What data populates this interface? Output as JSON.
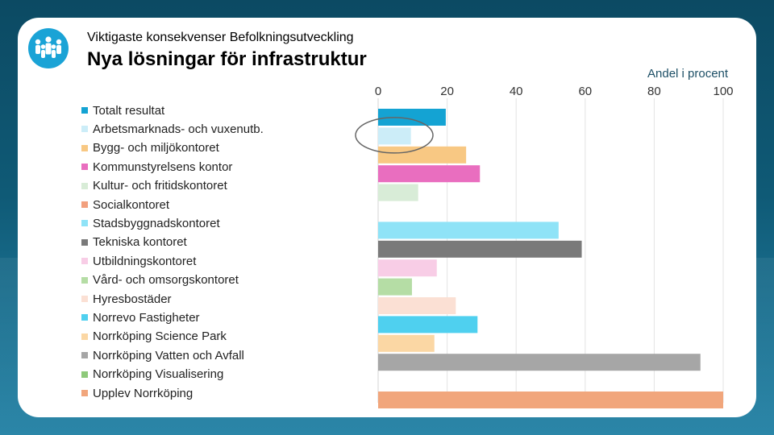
{
  "header": {
    "subtitle": "Viktigaste konsekvenser Befolkningsutveckling",
    "title": "Nya lösningar för infrastruktur",
    "logo_icon": "people-group-icon"
  },
  "chart_data": {
    "type": "bar",
    "orientation": "horizontal",
    "title": "Nya lösningar för infrastruktur",
    "xlabel": "Andel i procent",
    "ylabel": "",
    "xlim": [
      0,
      100
    ],
    "x_ticks": [
      "0",
      "20",
      "40",
      "60",
      "80",
      "100"
    ],
    "grid": true,
    "legend_position": "left",
    "categories": [
      "Totalt resultat",
      "Arbetsmarknads- och vuxenutb.",
      "Bygg- och miljökontoret",
      "Kommunstyrelsens kontor",
      "Kultur- och fritidskontoret",
      "Socialkontoret",
      "Stadsbyggnadskontoret",
      "Tekniska kontoret",
      "Utbildningskontoret",
      "Vård- och omsorgskontoret",
      "Hyresbostäder",
      "Norrevo Fastigheter",
      "Norrköping Science Park",
      "Norrköping Vatten och Avfall",
      "Norrköping Visualisering",
      "Upplev Norrköping"
    ],
    "values": [
      19.6,
      9.5,
      25.5,
      29.5,
      11.6,
      0,
      52.3,
      59.0,
      17.0,
      9.8,
      22.5,
      28.8,
      16.3,
      93.4,
      0,
      100
    ],
    "colors": [
      "#14a3d3",
      "#ccedf8",
      "#f8c883",
      "#e96ebf",
      "#d8ecd7",
      "#f2a07e",
      "#8fe3f7",
      "#7a7a7a",
      "#f8cde6",
      "#b5dda5",
      "#fbe0d4",
      "#4fd0ef",
      "#fbd7a4",
      "#a6a6a6",
      "#8ec97a",
      "#f1a67c"
    ],
    "annotations": [
      {
        "type": "ellipse-highlight",
        "target": "Arbetsmarknads- och vuxenutb."
      }
    ]
  }
}
